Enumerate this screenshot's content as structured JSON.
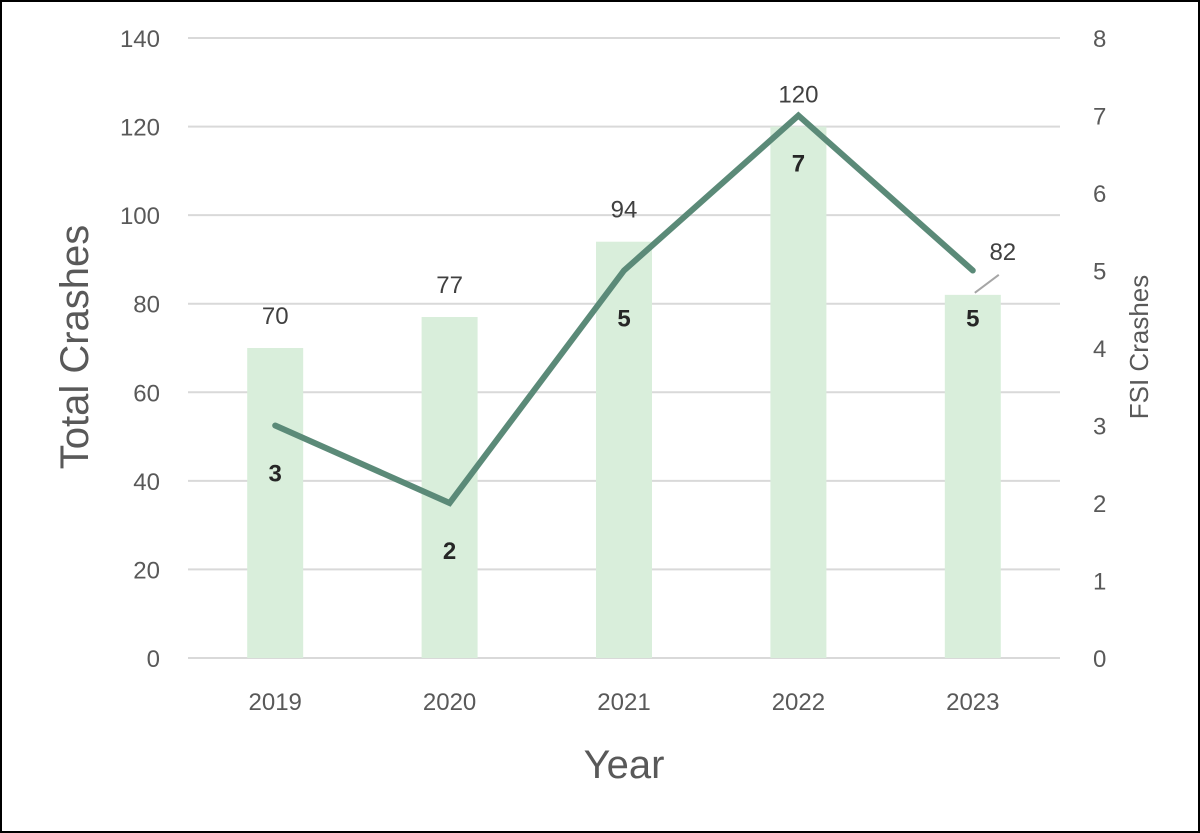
{
  "chart_data": {
    "type": "bar",
    "categories": [
      "2019",
      "2020",
      "2021",
      "2022",
      "2023"
    ],
    "series": [
      {
        "type": "bar",
        "values": [
          70,
          77,
          94,
          120,
          82
        ],
        "color": "#d9eedb",
        "axis": "left"
      },
      {
        "type": "line",
        "values": [
          3,
          2,
          5,
          7,
          5
        ],
        "color": "#5b8a78",
        "axis": "right"
      }
    ],
    "xlabel": "Year",
    "ylabel": "Total Crashes",
    "y2label": "FSI Crashes",
    "ylim": [
      0,
      140
    ],
    "y2lim": [
      0,
      8
    ],
    "yticks": [
      "0",
      "20",
      "40",
      "60",
      "80",
      "100",
      "120",
      "140"
    ],
    "y2ticks": [
      "0",
      "1",
      "2",
      "3",
      "4",
      "5",
      "6",
      "7",
      "8"
    ],
    "grid": true,
    "gridColor": "#d9d9d9",
    "legend": "none"
  }
}
